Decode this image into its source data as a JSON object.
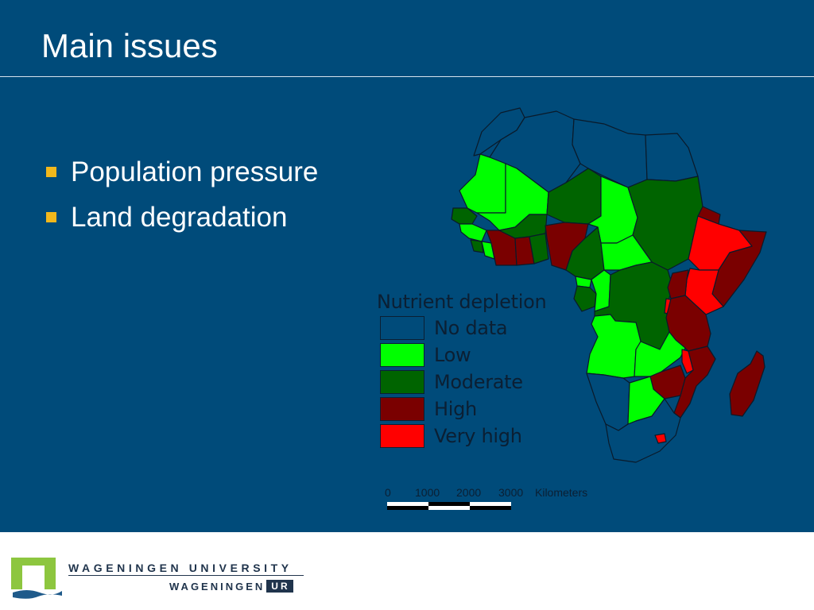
{
  "slide": {
    "title": "Main issues",
    "bullets": [
      "Population pressure",
      "Land degradation"
    ]
  },
  "colors": {
    "background": "#004b7a",
    "bullet": "#f2b81c",
    "no_data": "#004b7a",
    "low": "#00ff00",
    "moderate": "#006400",
    "high": "#7a0000",
    "very_high": "#ff0000"
  },
  "map": {
    "legend": {
      "title": "Nutrient depletion",
      "items": [
        {
          "label": "No data",
          "key": "no_data"
        },
        {
          "label": "Low",
          "key": "low"
        },
        {
          "label": "Moderate",
          "key": "moderate"
        },
        {
          "label": "High",
          "key": "high"
        },
        {
          "label": "Very high",
          "key": "very_high"
        }
      ]
    },
    "scale": {
      "ticks": [
        "0",
        "1000",
        "2000",
        "3000"
      ],
      "unit": "Kilometers"
    }
  },
  "footer": {
    "university": "WAGENINGEN UNIVERSITY",
    "wageningen": "WAGENINGEN",
    "ur": "UR"
  }
}
